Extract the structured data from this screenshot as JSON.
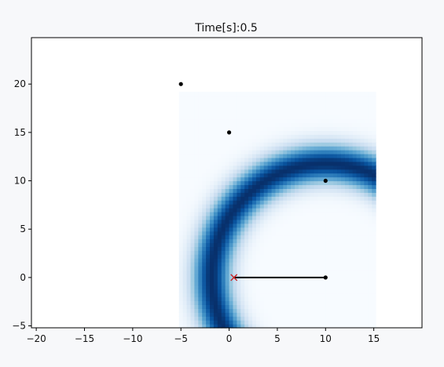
{
  "chart_data": {
    "type": "heatmap",
    "title": "Time[s]:0.5",
    "xlabel": "",
    "ylabel": "",
    "xlim": [
      -20.5,
      20
    ],
    "ylim": [
      -5.2,
      24.8
    ],
    "xticks": [
      -20,
      -15,
      -10,
      -5,
      0,
      5,
      10,
      15
    ],
    "yticks": [
      -5,
      0,
      5,
      10,
      15,
      20
    ],
    "grid": false,
    "colormap": "Blues",
    "heatmap": {
      "x_range": [
        -5.2,
        15
      ],
      "y_range": [
        -5.2,
        19
      ],
      "center": [
        10,
        0
      ],
      "peak_radius": 11.8,
      "band_width": 2.0
    },
    "points": [
      {
        "x": -5,
        "y": 20
      },
      {
        "x": 0,
        "y": 15
      },
      {
        "x": 10,
        "y": 10
      },
      {
        "x": 10,
        "y": 0
      }
    ],
    "segment": {
      "x": [
        0.5,
        10
      ],
      "y": [
        0,
        0
      ],
      "color": "#000000"
    },
    "marker": {
      "x": 0.5,
      "y": 0,
      "symbol": "x",
      "color": "#cc2222"
    }
  }
}
